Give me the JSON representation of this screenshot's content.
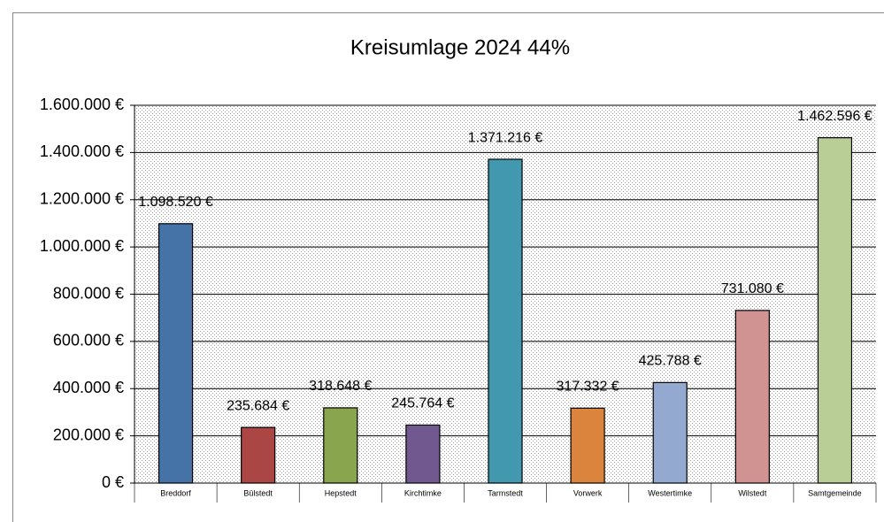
{
  "chart_data": {
    "type": "bar",
    "title": "Kreisumlage 2024 44%",
    "categories": [
      "Breddorf",
      "Bülstedt",
      "Hepstedt",
      "Kirchtimke",
      "Tarmstedt",
      "Vorwerk",
      "Westertimke",
      "Wilstedt",
      "Samtgemeinde"
    ],
    "values": [
      1098520,
      235684,
      318648,
      245764,
      1371216,
      317332,
      425788,
      731080,
      1462596
    ],
    "value_labels": [
      "1.098.520 €",
      "235.684 €",
      "318.648 €",
      "245.764 €",
      "1.371.216 €",
      "317.332 €",
      "425.788 €",
      "731.080 €",
      "1.462.596 €"
    ],
    "colors": [
      "#4572a7",
      "#aa4643",
      "#89a54e",
      "#71588f",
      "#4198af",
      "#db843d",
      "#93a9cf",
      "#d19392",
      "#b9cd96"
    ],
    "ylim": [
      0,
      1600000
    ],
    "yticks": [
      {
        "value": 0,
        "label": "0 €"
      },
      {
        "value": 200000,
        "label": "200.000 €"
      },
      {
        "value": 400000,
        "label": "400.000 €"
      },
      {
        "value": 600000,
        "label": "600.000 €"
      },
      {
        "value": 800000,
        "label": "800.000 €"
      },
      {
        "value": 1000000,
        "label": "1.000.000 €"
      },
      {
        "value": 1200000,
        "label": "1.200.000 €"
      },
      {
        "value": 1400000,
        "label": "1.400.000 €"
      },
      {
        "value": 1600000,
        "label": "1.600.000 €"
      }
    ],
    "grid": true
  }
}
